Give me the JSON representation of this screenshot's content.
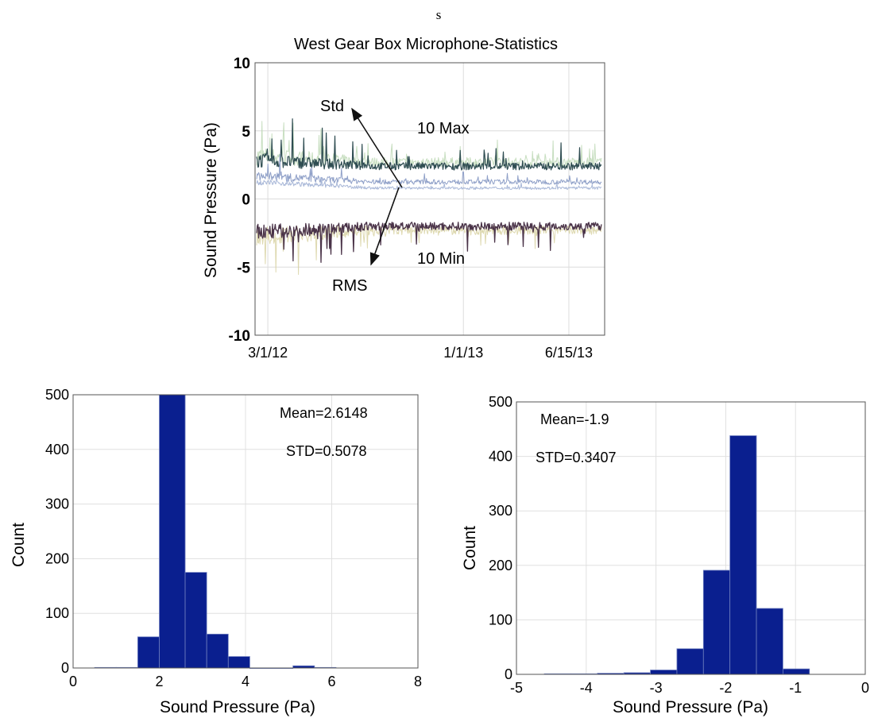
{
  "page_marker": "s",
  "chart_data": [
    {
      "type": "line",
      "title": "West Gear Box Microphone-Statistics",
      "xlabel": "",
      "ylabel": "Sound Pressure (Pa)",
      "xlim": [
        "2012-02-10",
        "2013-08-10"
      ],
      "ylim": [
        -10,
        10
      ],
      "x_ticks": [
        "3/1/12",
        "1/1/13",
        "6/15/13"
      ],
      "x_tick_dates": [
        "2012-03-01",
        "2013-01-01",
        "2013-06-15"
      ],
      "y_ticks": [
        -10,
        -5,
        0,
        5,
        10
      ],
      "grid": true,
      "series": [
        {
          "name": "10 Max",
          "color": "#2f4d52",
          "level": 2.4
        },
        {
          "name": "Std",
          "color": "#8fa0c8",
          "level": 1.0
        },
        {
          "name": "RMS",
          "color": "#a9b8d8",
          "level": 0.8
        },
        {
          "name": "10 Min",
          "color": "#4a3348",
          "level": -2.0
        }
      ],
      "annotations": [
        "Std",
        "10 Max",
        "10 Min",
        "RMS"
      ]
    },
    {
      "type": "bar",
      "subtype": "histogram",
      "xlabel": "Sound Pressure (Pa)",
      "ylabel": "Count",
      "xlim": [
        0,
        8
      ],
      "ylim": [
        0,
        500
      ],
      "x_ticks": [
        0,
        2,
        4,
        6,
        8
      ],
      "y_ticks": [
        0,
        100,
        200,
        300,
        400,
        500
      ],
      "bin_edges": [
        0.5,
        1.0,
        1.5,
        2.0,
        2.6,
        3.1,
        3.6,
        4.1,
        4.6,
        5.1,
        5.6,
        6.1
      ],
      "values": [
        1,
        1,
        57,
        500,
        175,
        62,
        21,
        0,
        0,
        4,
        1
      ],
      "bar_color": "#0a1f8f",
      "stats": [
        "Mean=2.6148",
        "STD=0.5078"
      ],
      "grid": true
    },
    {
      "type": "bar",
      "subtype": "histogram",
      "xlabel": "Sound Pressure (Pa)",
      "ylabel": "Count",
      "xlim": [
        -5,
        0
      ],
      "ylim": [
        0,
        500
      ],
      "x_ticks": [
        -5,
        -4,
        -3,
        -2,
        -1,
        0
      ],
      "y_ticks": [
        0,
        100,
        200,
        300,
        400,
        500
      ],
      "bin_edges": [
        -4.6,
        -4.22,
        -3.84,
        -3.46,
        -3.08,
        -2.7,
        -2.32,
        -1.94,
        -1.56,
        -1.18,
        -0.8
      ],
      "values": [
        1,
        1,
        2,
        3,
        8,
        47,
        191,
        438,
        121,
        10
      ],
      "bar_color": "#0a1f8f",
      "stats": [
        "Mean=-1.9",
        "STD=0.3407"
      ],
      "grid": true
    }
  ]
}
